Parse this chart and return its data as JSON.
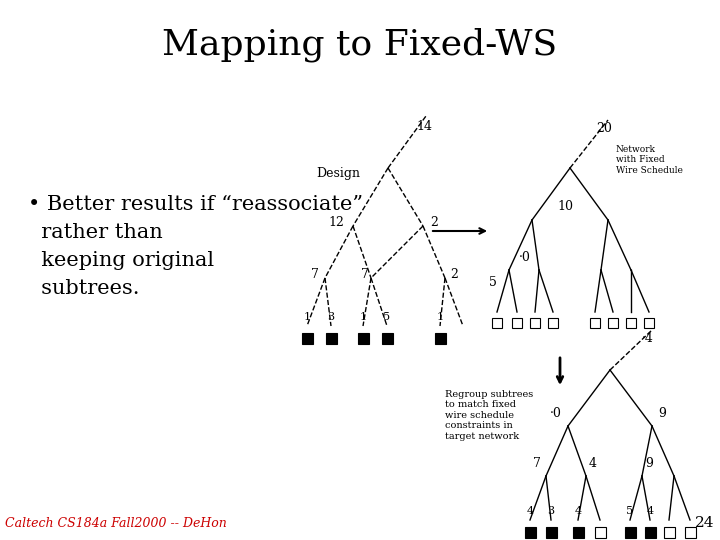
{
  "title": "Mapping to Fixed-WS",
  "bg_color": "#ffffff",
  "text_color": "#000000",
  "footer": "Caltech CS184a Fall2000 -- DeHon",
  "page": "24",
  "title_fs": 26,
  "bullet_fs": 15,
  "footer_fs": 9,
  "label_fs": 9,
  "small_fs": 7.5
}
